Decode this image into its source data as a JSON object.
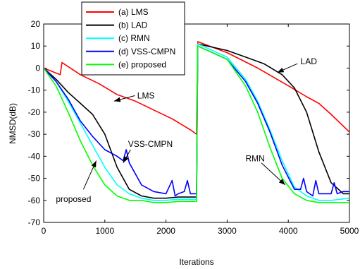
{
  "chart_data": {
    "type": "line",
    "title": "",
    "xlabel": "Iterations",
    "ylabel": "NMSD(dB)",
    "xlim": [
      0,
      5000
    ],
    "ylim": [
      -70,
      20
    ],
    "xticks": [
      0,
      1000,
      2000,
      3000,
      4000,
      5000
    ],
    "yticks": [
      20,
      10,
      0,
      -10,
      -20,
      -30,
      -40,
      -50,
      -60,
      -70
    ],
    "grid": false,
    "legend_position": "top-center",
    "series": [
      {
        "name": "(a) LMS",
        "color": "#ff0000",
        "x": [
          0,
          270,
          300,
          600,
          900,
          1200,
          1500,
          1800,
          2100,
          2400,
          2500,
          2520,
          3000,
          3500,
          4000,
          4300,
          4500,
          4700,
          5000
        ],
        "y": [
          0,
          -3,
          2.5,
          -3,
          -7,
          -12,
          -15,
          -19,
          -23,
          -28,
          -30,
          12,
          7,
          0,
          -8,
          -13,
          -16,
          -21,
          -29
        ]
      },
      {
        "name": "(b) LAD",
        "color": "#000000",
        "x": [
          0,
          200,
          400,
          600,
          800,
          1000,
          1200,
          1400,
          1600,
          1800,
          2000,
          2200,
          2400,
          2500,
          2520,
          3000,
          3300,
          3600,
          3900,
          4100,
          4300,
          4500,
          4700,
          4900,
          5000
        ],
        "y": [
          0,
          -5,
          -11,
          -16,
          -21,
          -30,
          -45,
          -55,
          -58,
          -59,
          -59,
          -58.5,
          -58.5,
          -58.5,
          11,
          8,
          5,
          2,
          -3,
          -9,
          -20,
          -38,
          -52,
          -57,
          -57
        ]
      },
      {
        "name": "(c) RMN",
        "color": "#00ffff",
        "x": [
          0,
          200,
          400,
          600,
          800,
          1000,
          1200,
          1400,
          1600,
          1800,
          2000,
          2200,
          2400,
          2500,
          2520,
          3000,
          3300,
          3500,
          3700,
          3900,
          4100,
          4300,
          4500,
          4700,
          5000
        ],
        "y": [
          0,
          -6,
          -15,
          -25,
          -35,
          -45,
          -53,
          -57,
          -59,
          -60,
          -60,
          -59.5,
          -59.5,
          -59.5,
          11,
          5,
          -5,
          -15,
          -28,
          -42,
          -54,
          -58,
          -60,
          -60,
          -59
        ]
      },
      {
        "name": "(d) VSS-CMPN",
        "color": "#0000ff",
        "x": [
          0,
          200,
          400,
          600,
          800,
          1000,
          1200,
          1300,
          1350,
          1400,
          1500,
          1600,
          1800,
          2000,
          2100,
          2150,
          2200,
          2300,
          2350,
          2400,
          2450,
          2500,
          2520,
          3000,
          3300,
          3500,
          3700,
          3900,
          4100,
          4200,
          4250,
          4300,
          4400,
          4450,
          4500,
          4600,
          4700,
          4750,
          4800,
          4900,
          5000
        ],
        "y": [
          0,
          -6,
          -14,
          -24,
          -31,
          -37,
          -40,
          -42,
          -37,
          -43,
          -48,
          -53,
          -56,
          -57,
          -51,
          -58,
          -57,
          -56,
          -51,
          -57,
          -57,
          -57,
          10,
          4,
          -6,
          -16,
          -29,
          -44,
          -55,
          -55,
          -50,
          -56,
          -58,
          -51,
          -57,
          -57,
          -57,
          -52,
          -57,
          -56,
          -56
        ]
      },
      {
        "name": "(e) proposed",
        "color": "#00ff00",
        "x": [
          0,
          200,
          400,
          600,
          800,
          1000,
          1200,
          1400,
          1600,
          1800,
          2000,
          2200,
          2400,
          2500,
          2520,
          3000,
          3300,
          3500,
          3700,
          3900,
          4100,
          4300,
          4500,
          4700,
          5000
        ],
        "y": [
          0,
          -8,
          -20,
          -33,
          -44,
          -53,
          -58,
          -60,
          -60,
          -61,
          -61,
          -60.5,
          -60.5,
          -60.5,
          10,
          4,
          -8,
          -20,
          -36,
          -50,
          -57,
          -60,
          -61,
          -61,
          -61
        ]
      }
    ],
    "annotations": [
      {
        "text": "LMS",
        "color": "#000000"
      },
      {
        "text": "LAD",
        "color": "#000000"
      },
      {
        "text": "VSS-CMPN",
        "color": "#000000"
      },
      {
        "text": "RMN",
        "color": "#000000"
      },
      {
        "text": "proposed",
        "color": "#000000"
      }
    ]
  }
}
